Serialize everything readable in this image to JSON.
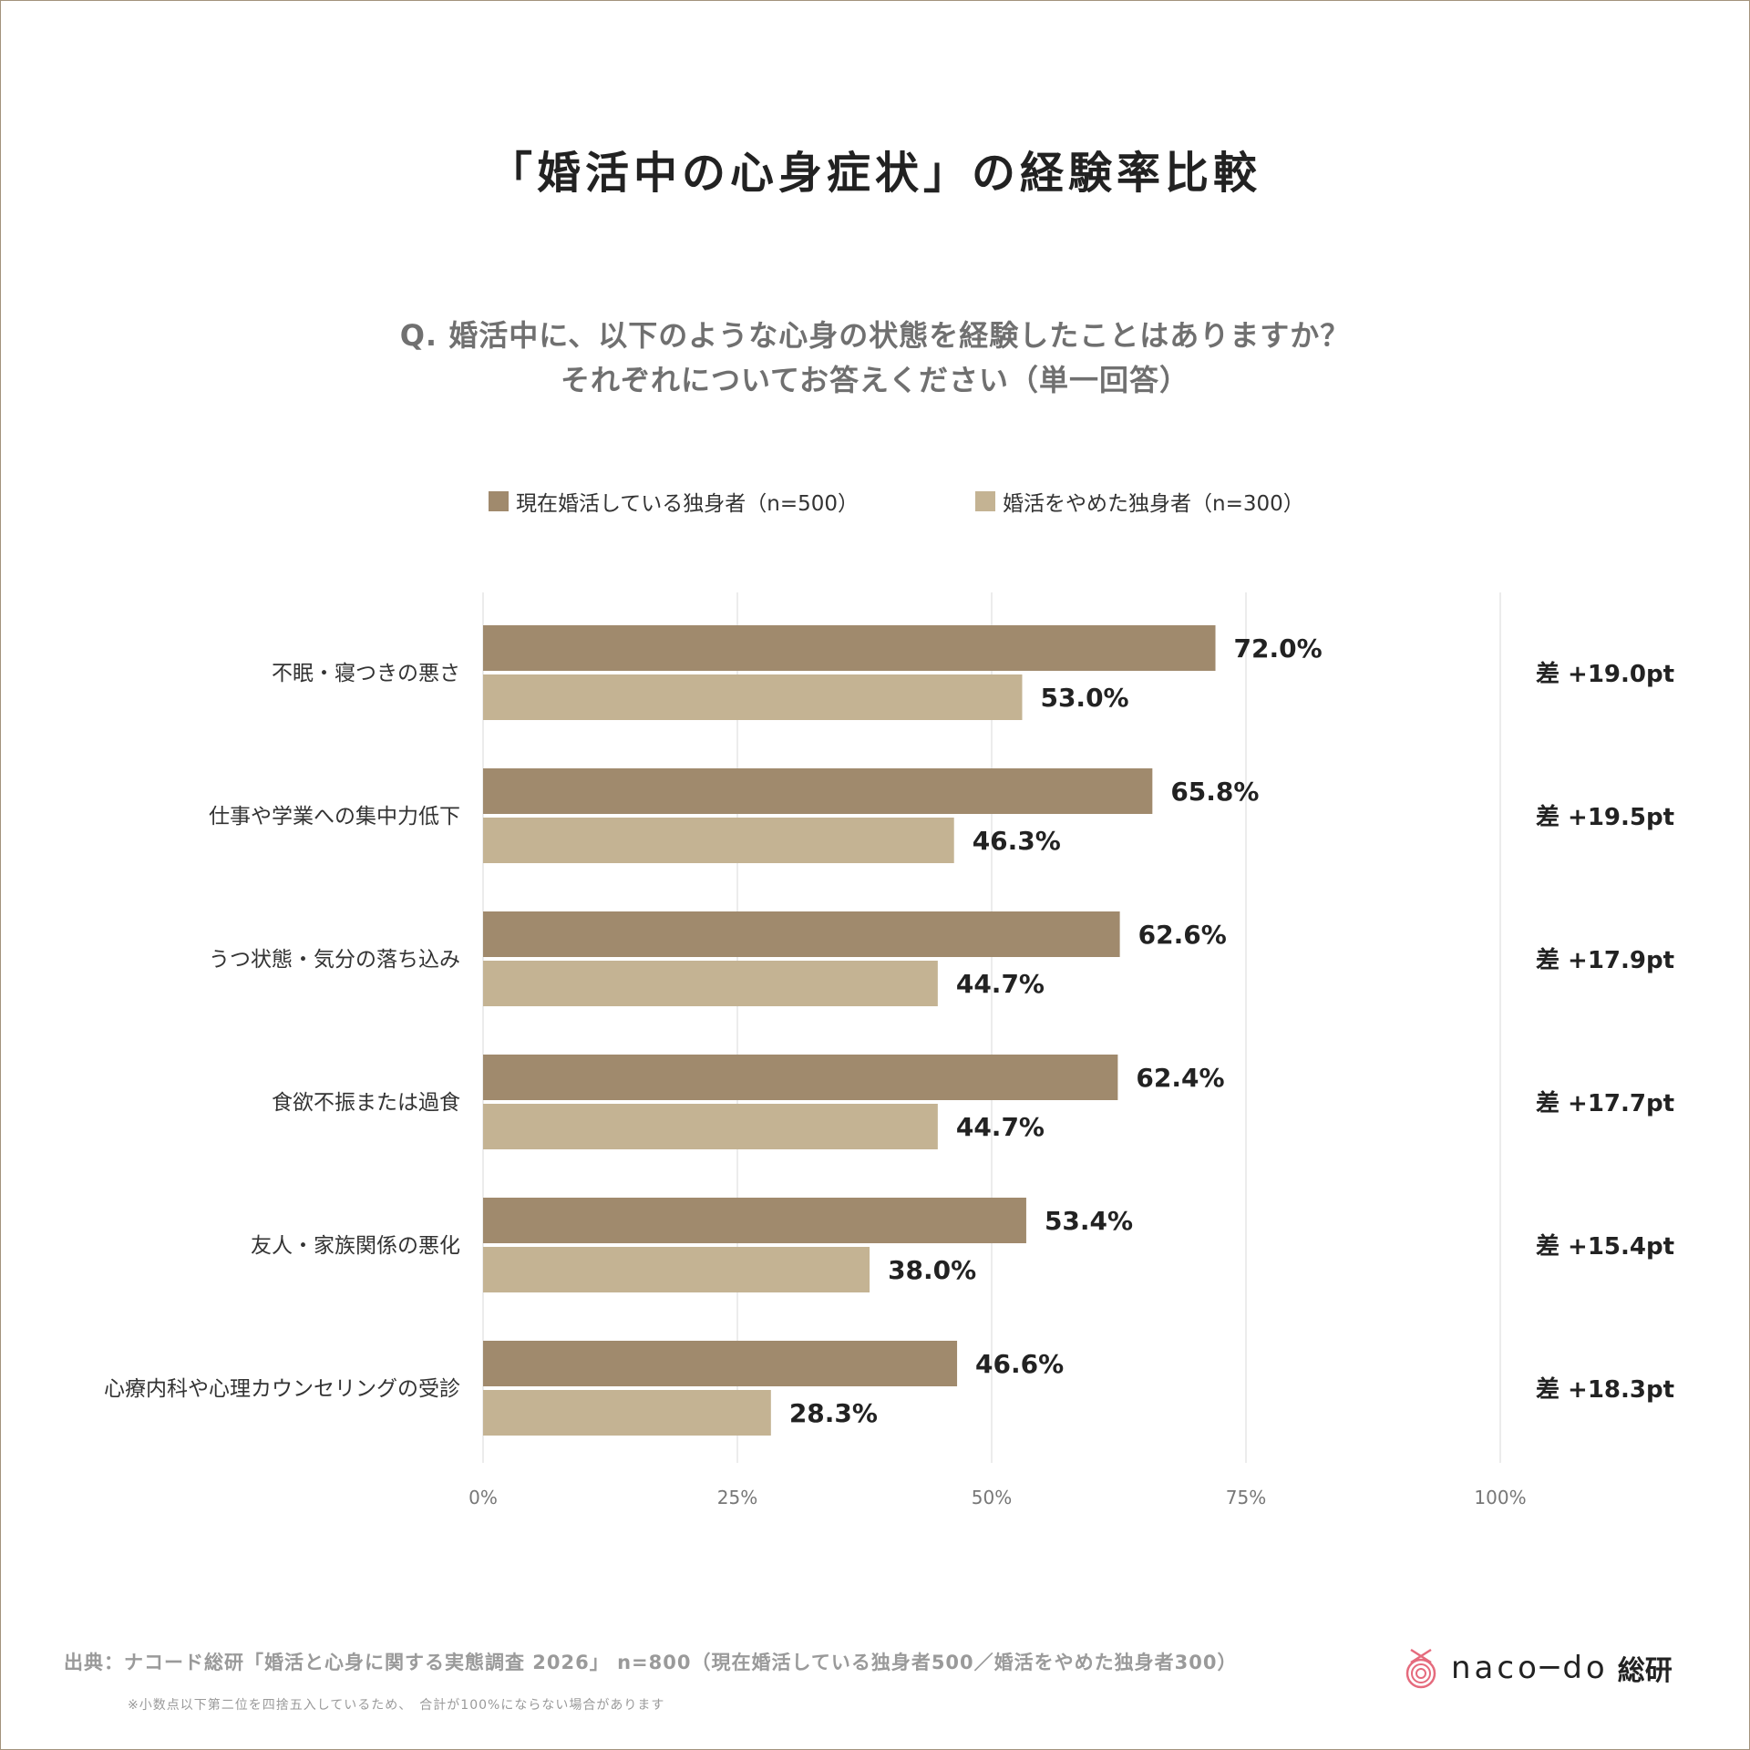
{
  "title": "「婚活中の心身症状」の経験率比較",
  "question_line1": "Q. 婚活中に、以下のような心身の状態を経験したことはありますか？",
  "question_line2": "それぞれについてお答えください（単一回答）",
  "colors": {
    "current": "#a08a6d",
    "quit": "#c4b393",
    "grid": "#e6e6e6"
  },
  "chart_data": {
    "type": "bar",
    "orientation": "horizontal",
    "categories": [
      "不眠・寝つきの悪さ",
      "仕事や学業への集中力低下",
      "うつ状態・気分の落ち込み",
      "食欲不振または過食",
      "友人・家族関係の悪化",
      "心療内科や心理カウンセリングの受診"
    ],
    "series": [
      {
        "name": "現在婚活している独身者（n=500）",
        "values": [
          72.0,
          65.8,
          62.6,
          62.4,
          53.4,
          46.6
        ],
        "labels": [
          "72.0%",
          "65.8%",
          "62.6%",
          "62.4%",
          "53.4%",
          "46.6%"
        ]
      },
      {
        "name": "婚活をやめた独身者（n=300）",
        "values": [
          53.0,
          46.3,
          44.7,
          44.7,
          38.0,
          28.3
        ],
        "labels": [
          "53.0%",
          "46.3%",
          "44.7%",
          "44.7%",
          "38.0%",
          "28.3%"
        ]
      }
    ],
    "differences": [
      "差 +19.0pt",
      "差 +19.5pt",
      "差 +17.9pt",
      "差 +17.7pt",
      "差 +15.4pt",
      "差 +18.3pt"
    ],
    "xlim": [
      0,
      100
    ],
    "xticks": [
      0,
      25,
      50,
      75,
      100
    ],
    "xtick_labels": [
      "0%",
      "25%",
      "50%",
      "75%",
      "100%"
    ],
    "grid": true,
    "legend_position": "top"
  },
  "footer": {
    "source": "出典：ナコード総研「婚活と心身に関する実態調査 2026」 n=800（現在婚活している独身者500／婚活をやめた独身者300）",
    "note": "※小数点以下第二位を四捨五入しているため、　合計が100%にならない場合があります",
    "logo_text": "naco─do",
    "logo_suffix": "総研"
  }
}
